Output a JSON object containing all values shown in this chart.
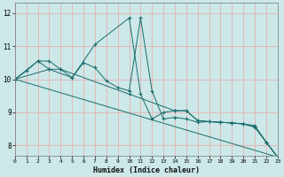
{
  "xlabel": "Humidex (Indice chaleur)",
  "background_color": "#cce8e8",
  "grid_color_major": "#e8b0b0",
  "grid_color_minor": "#e0c8c8",
  "line_color": "#1a6b6b",
  "xlim": [
    0,
    23
  ],
  "ylim": [
    7.7,
    12.3
  ],
  "xticks": [
    0,
    1,
    2,
    3,
    4,
    5,
    6,
    7,
    8,
    9,
    10,
    11,
    12,
    13,
    14,
    15,
    16,
    17,
    18,
    19,
    20,
    21,
    22,
    23
  ],
  "yticks": [
    8,
    9,
    10,
    11,
    12
  ],
  "series": [
    {
      "x": [
        0,
        1,
        2,
        3,
        4,
        5,
        6,
        7,
        8,
        9,
        10,
        11,
        12,
        13,
        14,
        15,
        16,
        17,
        18,
        19,
        20,
        21,
        22,
        23
      ],
      "y": [
        10.0,
        10.25,
        10.55,
        10.55,
        10.3,
        10.05,
        10.5,
        10.35,
        9.95,
        9.75,
        9.65,
        11.85,
        9.65,
        8.8,
        8.85,
        8.8,
        8.7,
        8.72,
        8.7,
        8.68,
        8.65,
        8.55,
        8.1,
        7.65
      ]
    },
    {
      "x": [
        0,
        2,
        3,
        5,
        7,
        10,
        11,
        12,
        13,
        14,
        15,
        16,
        17,
        18,
        19,
        20,
        21,
        22,
        23
      ],
      "y": [
        10.0,
        10.55,
        10.3,
        10.05,
        11.05,
        11.85,
        9.55,
        8.8,
        9.0,
        9.05,
        9.05,
        8.75,
        8.72,
        8.7,
        8.68,
        8.65,
        8.58,
        8.1,
        7.65
      ]
    },
    {
      "x": [
        0,
        23
      ],
      "y": [
        10.0,
        7.65
      ]
    },
    {
      "x": [
        0,
        3,
        4,
        10,
        14,
        15,
        16,
        17,
        18,
        19,
        20,
        21,
        22,
        23
      ],
      "y": [
        10.0,
        10.3,
        10.3,
        9.55,
        9.05,
        9.05,
        8.75,
        8.72,
        8.7,
        8.68,
        8.65,
        8.6,
        8.1,
        7.65
      ]
    }
  ]
}
